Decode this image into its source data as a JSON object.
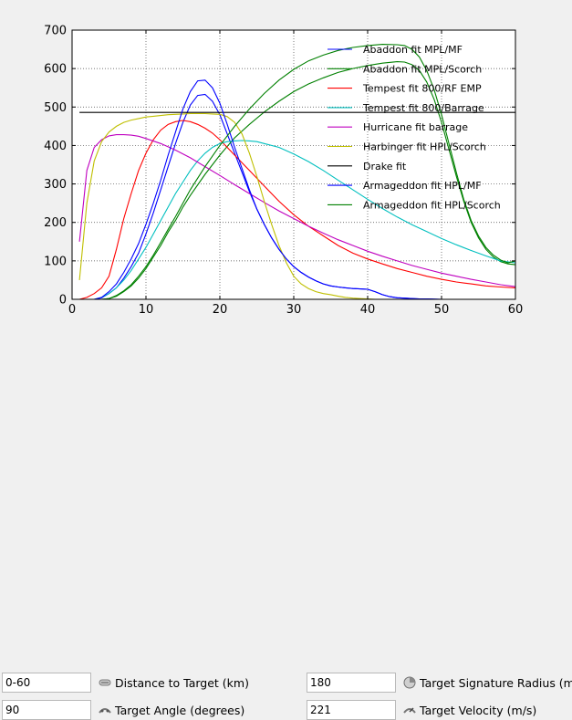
{
  "chart_data": {
    "type": "line",
    "title": "",
    "xlabel": "",
    "ylabel": "",
    "xlim": [
      0,
      60
    ],
    "ylim": [
      0,
      700
    ],
    "xticks": [
      "0",
      "10",
      "20",
      "30",
      "40",
      "50",
      "60"
    ],
    "yticks": [
      "0",
      "100",
      "200",
      "300",
      "400",
      "500",
      "600",
      "700"
    ],
    "grid": true,
    "legend_position": "top-right",
    "series": [
      {
        "name": "Abaddon fit MPL/MF",
        "color": "#0000ff",
        "x": [
          1,
          2,
          3,
          4,
          5,
          6,
          7,
          8,
          9,
          10,
          11,
          12,
          13,
          14,
          15,
          16,
          17,
          18,
          19,
          20,
          21,
          22,
          23,
          24,
          25,
          26,
          27,
          28,
          29,
          30,
          31,
          32,
          33,
          34,
          35,
          36,
          37,
          38,
          39,
          40,
          41,
          42,
          43,
          44,
          45,
          46,
          47,
          48,
          50,
          55,
          60
        ],
        "y": [
          0,
          0,
          0,
          4,
          15,
          30,
          55,
          85,
          120,
          170,
          225,
          285,
          345,
          405,
          460,
          505,
          530,
          533,
          515,
          480,
          430,
          380,
          330,
          280,
          235,
          195,
          160,
          130,
          105,
          85,
          70,
          58,
          48,
          40,
          35,
          32,
          30,
          28,
          27,
          26,
          20,
          12,
          7,
          4,
          3,
          2,
          1,
          1,
          0,
          0,
          0
        ]
      },
      {
        "name": "Abaddon fit MPL/Scorch",
        "color": "#008000",
        "x": [
          1,
          2,
          3,
          4,
          5,
          6,
          7,
          8,
          9,
          10,
          11,
          12,
          13,
          14,
          15,
          16,
          18,
          20,
          22,
          24,
          26,
          28,
          30,
          32,
          34,
          36,
          38,
          40,
          42,
          44,
          45,
          46,
          47,
          48,
          49,
          50,
          51,
          52,
          53,
          54,
          55,
          56,
          57,
          58,
          59,
          60
        ],
        "y": [
          0,
          0,
          0,
          0,
          2,
          8,
          20,
          35,
          55,
          80,
          110,
          140,
          175,
          205,
          240,
          270,
          325,
          375,
          420,
          455,
          487,
          515,
          540,
          560,
          576,
          590,
          600,
          608,
          614,
          618,
          617,
          610,
          595,
          565,
          520,
          460,
          390,
          320,
          255,
          200,
          160,
          130,
          110,
          98,
          92,
          90
        ]
      },
      {
        "name": "Tempest fit 800/RF EMP",
        "color": "#ff0000",
        "x": [
          1,
          2,
          3,
          4,
          5,
          6,
          7,
          8,
          9,
          10,
          11,
          12,
          13,
          14,
          15,
          16,
          17,
          18,
          19,
          20,
          22,
          24,
          26,
          28,
          30,
          32,
          34,
          36,
          38,
          40,
          42,
          44,
          46,
          48,
          50,
          52,
          54,
          56,
          58,
          60
        ],
        "y": [
          0,
          5,
          15,
          30,
          60,
          130,
          210,
          275,
          335,
          380,
          415,
          440,
          455,
          462,
          465,
          462,
          455,
          445,
          432,
          415,
          375,
          335,
          295,
          255,
          220,
          190,
          165,
          140,
          120,
          105,
          92,
          80,
          70,
          60,
          52,
          45,
          40,
          35,
          32,
          30
        ]
      },
      {
        "name": "Tempest fit 800/Barrage",
        "color": "#00bfbf",
        "x": [
          1,
          2,
          3,
          4,
          5,
          6,
          7,
          8,
          9,
          10,
          11,
          12,
          13,
          14,
          15,
          16,
          17,
          18,
          19,
          20,
          21,
          22,
          23,
          24,
          25,
          26,
          28,
          30,
          32,
          34,
          36,
          38,
          40,
          42,
          44,
          46,
          48,
          50,
          52,
          54,
          56,
          58,
          60
        ],
        "y": [
          0,
          0,
          0,
          5,
          15,
          30,
          50,
          75,
          105,
          135,
          170,
          205,
          240,
          275,
          305,
          335,
          360,
          380,
          395,
          405,
          410,
          412,
          413,
          412,
          410,
          405,
          395,
          378,
          358,
          335,
          310,
          285,
          260,
          236,
          214,
          194,
          176,
          158,
          142,
          127,
          113,
          100,
          95
        ]
      },
      {
        "name": "Hurricane fit barrage",
        "color": "#bf00bf",
        "x": [
          1,
          2,
          3,
          4,
          5,
          6,
          7,
          8,
          9,
          10,
          12,
          14,
          16,
          18,
          20,
          22,
          24,
          26,
          28,
          30,
          32,
          34,
          36,
          38,
          40,
          42,
          44,
          46,
          48,
          50,
          52,
          54,
          56,
          58,
          60
        ],
        "y": [
          150,
          335,
          395,
          415,
          425,
          428,
          428,
          427,
          424,
          418,
          405,
          388,
          368,
          345,
          322,
          298,
          275,
          252,
          230,
          210,
          190,
          172,
          155,
          140,
          125,
          112,
          100,
          88,
          78,
          68,
          60,
          52,
          45,
          38,
          33
        ]
      },
      {
        "name": "Harbinger fit HPL/Scorch",
        "color": "#bfbf00",
        "x": [
          1,
          2,
          3,
          4,
          5,
          6,
          7,
          8,
          9,
          10,
          11,
          12,
          13,
          14,
          15,
          16,
          17,
          18,
          19,
          20,
          21,
          22,
          23,
          24,
          25,
          26,
          27,
          28,
          29,
          30,
          31,
          32,
          33,
          34,
          35,
          36,
          37,
          38,
          39,
          40,
          41,
          42,
          44,
          46,
          48,
          50,
          55,
          60
        ],
        "y": [
          50,
          250,
          360,
          410,
          435,
          450,
          460,
          466,
          470,
          474,
          476,
          478,
          480,
          481,
          482,
          483,
          483,
          483,
          482,
          481,
          475,
          460,
          430,
          380,
          320,
          255,
          195,
          140,
          95,
          60,
          40,
          28,
          20,
          15,
          12,
          8,
          5,
          3,
          2,
          1,
          0,
          0,
          0,
          0,
          0,
          0,
          0,
          0
        ]
      },
      {
        "name": "Drake fit",
        "color": "#000000",
        "x": [
          1,
          60
        ],
        "y": [
          486,
          486
        ]
      },
      {
        "name": "Armageddon fit HPL/MF",
        "color": "#0000ff",
        "x": [
          1,
          2,
          3,
          4,
          5,
          6,
          7,
          8,
          9,
          10,
          11,
          12,
          13,
          14,
          15,
          16,
          17,
          18,
          19,
          20,
          21,
          22,
          23,
          24,
          25,
          26,
          27,
          28,
          29,
          30,
          31,
          32,
          33,
          34,
          35,
          36,
          37,
          38,
          39,
          40,
          41,
          42,
          43,
          44,
          45,
          46,
          47,
          48,
          50,
          55,
          60
        ],
        "y": [
          0,
          0,
          0,
          5,
          20,
          40,
          70,
          105,
          145,
          195,
          250,
          310,
          375,
          435,
          495,
          540,
          568,
          570,
          550,
          510,
          455,
          395,
          340,
          285,
          235,
          195,
          160,
          130,
          105,
          85,
          70,
          58,
          48,
          40,
          35,
          32,
          30,
          28,
          27,
          26,
          20,
          12,
          7,
          4,
          3,
          2,
          1,
          1,
          0,
          0,
          0
        ]
      },
      {
        "name": "Armageddon fit HPL/Scorch",
        "color": "#008000",
        "x": [
          1,
          2,
          3,
          4,
          5,
          6,
          7,
          8,
          9,
          10,
          11,
          12,
          13,
          14,
          15,
          16,
          18,
          20,
          22,
          24,
          26,
          28,
          30,
          32,
          34,
          36,
          38,
          40,
          42,
          44,
          45,
          46,
          47,
          48,
          49,
          50,
          51,
          52,
          53,
          54,
          55,
          56,
          57,
          58,
          59,
          60
        ],
        "y": [
          0,
          0,
          0,
          0,
          2,
          10,
          22,
          38,
          60,
          85,
          115,
          148,
          182,
          215,
          250,
          285,
          345,
          400,
          450,
          495,
          535,
          570,
          598,
          620,
          635,
          647,
          655,
          660,
          663,
          662,
          660,
          650,
          630,
          595,
          545,
          480,
          405,
          330,
          260,
          205,
          165,
          135,
          115,
          102,
          95,
          100
        ]
      }
    ]
  },
  "controls": {
    "distance": {
      "value": "0-60",
      "label": "Distance to Target (km)",
      "icon": "distance-icon"
    },
    "signature": {
      "value": "180",
      "label": "Target Signature Radius (m)",
      "icon": "signature-radius-icon"
    },
    "angle": {
      "value": "90",
      "label": "Target Angle (degrees)",
      "icon": "angle-icon"
    },
    "velocity": {
      "value": "221",
      "label": "Target Velocity (m/s)",
      "icon": "velocity-icon"
    }
  }
}
